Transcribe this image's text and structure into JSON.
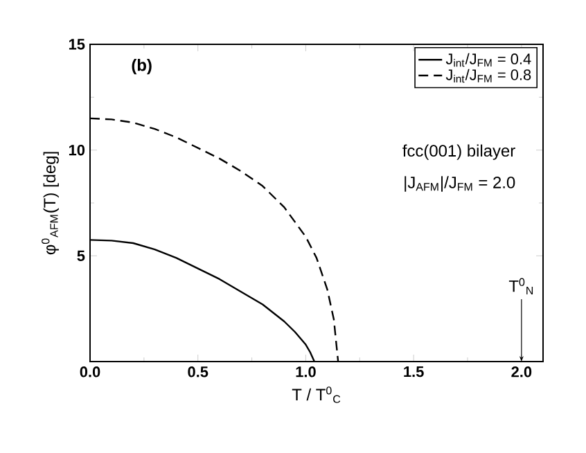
{
  "chart_data": {
    "type": "line",
    "xlabel": "T / T$^{0}$$_{C}$",
    "ylabel": "φ$^{0}$$_{AFM}$(T)  [deg]",
    "xlim": [
      0,
      2.1
    ],
    "ylim": [
      0,
      15
    ],
    "xticks": [
      {
        "value": 0,
        "label": "0.0"
      },
      0.5,
      {
        "value": 1,
        "label": "1.0"
      },
      1.5,
      {
        "value": 2,
        "label": "2.0"
      }
    ],
    "yticks": [
      5,
      10,
      15
    ],
    "legend": "top right",
    "grid": false,
    "series": [
      {
        "name": "J$_{int}$/J$_{FM}$ = 0.4",
        "color": "#000000",
        "line_style": "solid",
        "x": [
          0,
          0.1,
          0.2,
          0.3,
          0.4,
          0.5,
          0.6,
          0.7,
          0.8,
          0.9,
          0.95,
          1.0,
          1.02,
          1.04
        ],
        "values": [
          5.75,
          5.72,
          5.6,
          5.3,
          4.9,
          4.4,
          3.9,
          3.3,
          2.7,
          1.9,
          1.4,
          0.8,
          0.45,
          0
        ]
      },
      {
        "name": "J$_{int}$/J$_{FM}$ = 0.8",
        "color": "#000000",
        "line_style": "dashed",
        "x": [
          0,
          0.1,
          0.2,
          0.3,
          0.4,
          0.5,
          0.6,
          0.7,
          0.8,
          0.9,
          1.0,
          1.05,
          1.1,
          1.13,
          1.15
        ],
        "values": [
          11.5,
          11.45,
          11.3,
          11.0,
          10.6,
          10.1,
          9.6,
          9.0,
          8.3,
          7.3,
          5.9,
          4.9,
          3.4,
          2.0,
          0
        ]
      }
    ],
    "annotations": [
      "(b)",
      "fcc(001) bilayer",
      "|J$_{AFM}$|/J$_{FM}$ = 2.0",
      {
        "text": "T$^{0}$$_{N}$",
        "x": 2.0,
        "y": 0
      }
    ]
  }
}
